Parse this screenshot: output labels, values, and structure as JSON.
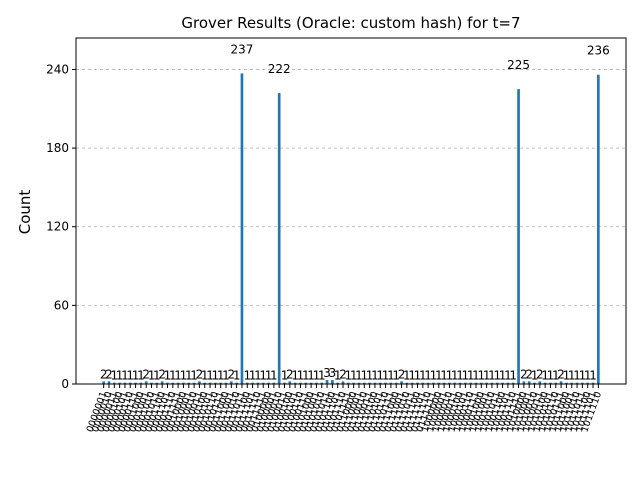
{
  "chart_data": {
    "type": "bar",
    "title": "Grover Results (Oracle: custom hash) for t=7",
    "xlabel": "",
    "ylabel": "Count",
    "ylim": [
      0,
      264
    ],
    "yticks": [
      0,
      60,
      120,
      180,
      240
    ],
    "grid": true,
    "bar_color": "#1f77b4",
    "categories": [
      "0000001",
      "0000010",
      "0000011",
      "0000100",
      "0000101",
      "0000110",
      "0000111",
      "0001000",
      "0001001",
      "0001010",
      "0001011",
      "0001100",
      "0001101",
      "0001110",
      "0001111",
      "0010000",
      "0010001",
      "0010010",
      "0010011",
      "0010100",
      "0010101",
      "0010110",
      "0010111",
      "0011000",
      "0011001",
      "0011010",
      "0011011",
      "0011100",
      "0011101",
      "0011110",
      "0011111",
      "0100000",
      "0100001",
      "0100010",
      "0100011",
      "0100100",
      "0100101",
      "0100110",
      "0100111",
      "0101000",
      "0101001",
      "0101010",
      "0101011",
      "0101100",
      "0101101",
      "0101110",
      "0101111",
      "0110000",
      "0110001",
      "0110010",
      "0110011",
      "0110100",
      "0110101",
      "0110110",
      "0110111",
      "0111000",
      "0111001",
      "0111010",
      "0111011",
      "0111100",
      "0111101",
      "0111110",
      "0111111",
      "1000000",
      "1000001",
      "1000010",
      "1000011",
      "1000100",
      "1000101",
      "1000110",
      "1000111",
      "1001000",
      "1001001",
      "1001010",
      "1001011",
      "1001100",
      "1001101",
      "1001110",
      "1001111",
      "1010000",
      "1010001",
      "1010010",
      "1010011",
      "1010100",
      "1010101",
      "1010110",
      "1010111",
      "1011000",
      "1011001",
      "1011010",
      "1011011",
      "1011100",
      "1011101",
      "1011110"
    ],
    "values": [
      2,
      2,
      1,
      1,
      1,
      1,
      1,
      1,
      2,
      1,
      1,
      2,
      1,
      1,
      1,
      1,
      1,
      1,
      2,
      1,
      1,
      1,
      1,
      1,
      2,
      1,
      237,
      1,
      1,
      1,
      1,
      1,
      1,
      222,
      1,
      2,
      1,
      1,
      1,
      1,
      1,
      1,
      3,
      3,
      1,
      2,
      1,
      1,
      1,
      1,
      1,
      1,
      1,
      1,
      1,
      1,
      2,
      1,
      1,
      1,
      1,
      1,
      1,
      1,
      1,
      1,
      1,
      1,
      1,
      1,
      1,
      1,
      1,
      1,
      1,
      1,
      1,
      1,
      225,
      2,
      2,
      1,
      2,
      1,
      1,
      1,
      2,
      1,
      1,
      1,
      1,
      1,
      1,
      236
    ]
  }
}
